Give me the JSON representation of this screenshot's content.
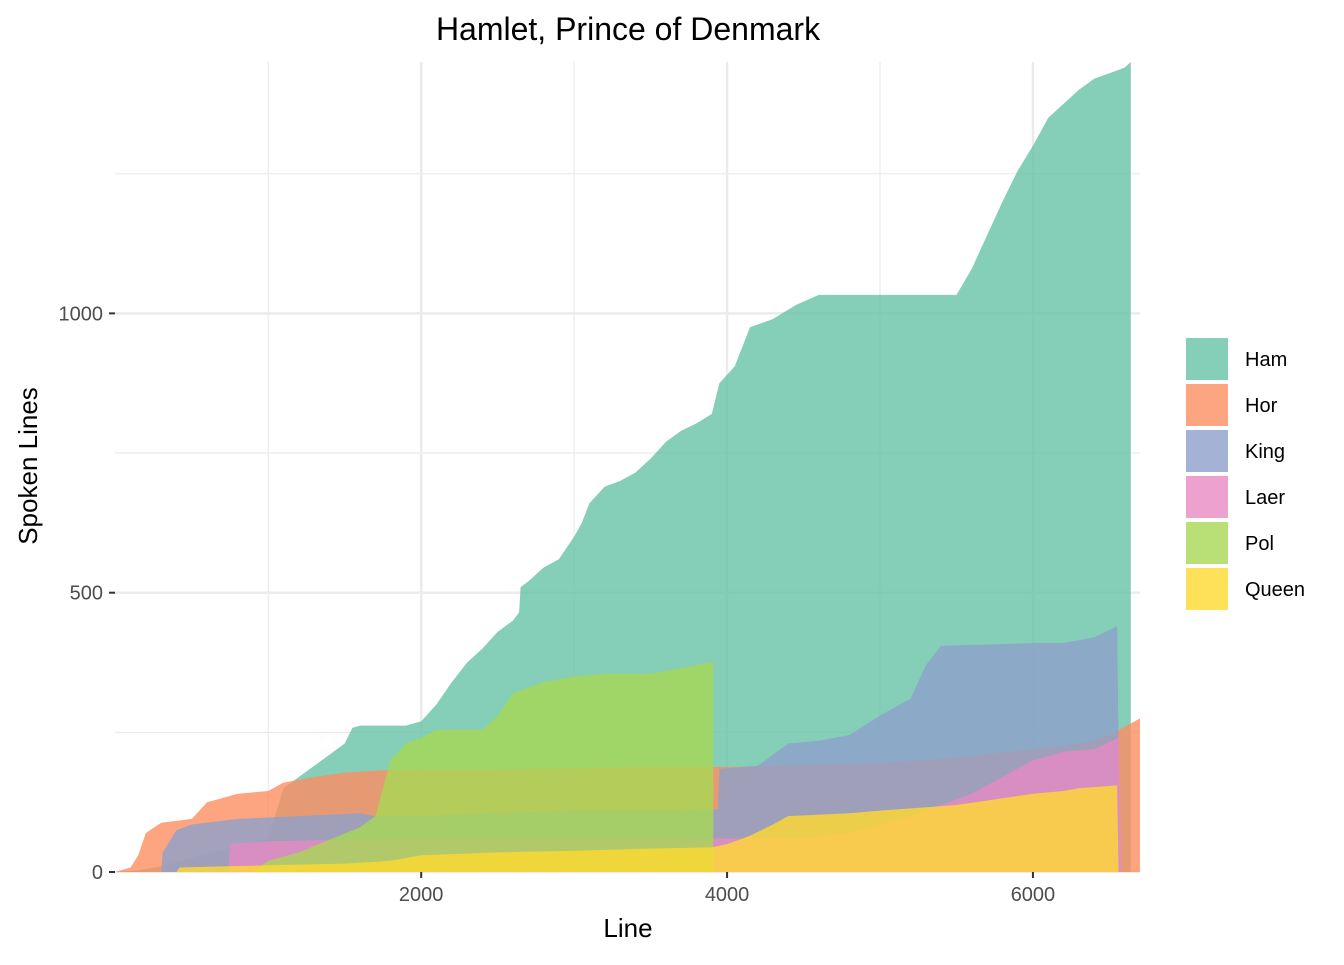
{
  "chart_data": {
    "type": "area",
    "title": "Hamlet, Prince of Denmark",
    "xlabel": "Line",
    "ylabel": "Spoken Lines",
    "xlim": [
      0,
      6700
    ],
    "ylim": [
      0,
      1450
    ],
    "x_ticks": [
      2000,
      4000,
      6000
    ],
    "y_ticks": [
      0,
      500,
      1000
    ],
    "x_tick_labels": [
      "2000",
      "4000",
      "6000"
    ],
    "y_tick_labels": [
      "0",
      "500",
      "1000"
    ],
    "grid": true,
    "legend_position": "right",
    "series": [
      {
        "name": "Ham",
        "color": "#66c2a5",
        "points": [
          [
            0,
            0
          ],
          [
            150,
            3
          ],
          [
            300,
            10
          ],
          [
            500,
            25
          ],
          [
            700,
            40
          ],
          [
            1000,
            60
          ],
          [
            1100,
            150
          ],
          [
            1200,
            170
          ],
          [
            1300,
            190
          ],
          [
            1400,
            210
          ],
          [
            1500,
            230
          ],
          [
            1550,
            258
          ],
          [
            1600,
            262
          ],
          [
            1900,
            262
          ],
          [
            2000,
            270
          ],
          [
            2100,
            300
          ],
          [
            2200,
            340
          ],
          [
            2300,
            375
          ],
          [
            2400,
            400
          ],
          [
            2500,
            430
          ],
          [
            2600,
            450
          ],
          [
            2640,
            465
          ],
          [
            2650,
            510
          ],
          [
            2700,
            520
          ],
          [
            2800,
            545
          ],
          [
            2900,
            560
          ],
          [
            3000,
            600
          ],
          [
            3050,
            625
          ],
          [
            3100,
            660
          ],
          [
            3200,
            690
          ],
          [
            3300,
            700
          ],
          [
            3400,
            715
          ],
          [
            3500,
            740
          ],
          [
            3600,
            770
          ],
          [
            3700,
            790
          ],
          [
            3800,
            803
          ],
          [
            3900,
            820
          ],
          [
            3950,
            875
          ],
          [
            4050,
            905
          ],
          [
            4150,
            975
          ],
          [
            4300,
            990
          ],
          [
            4450,
            1015
          ],
          [
            4600,
            1033
          ],
          [
            5000,
            1033
          ],
          [
            5500,
            1033
          ],
          [
            5600,
            1080
          ],
          [
            5700,
            1140
          ],
          [
            5800,
            1200
          ],
          [
            5900,
            1255
          ],
          [
            6000,
            1300
          ],
          [
            6100,
            1350
          ],
          [
            6300,
            1400
          ],
          [
            6400,
            1420
          ],
          [
            6500,
            1430
          ],
          [
            6600,
            1440
          ],
          [
            6640,
            1450
          ],
          [
            6640,
            0
          ]
        ]
      },
      {
        "name": "Hor",
        "color": "#fc8d62",
        "points": [
          [
            0,
            0
          ],
          [
            100,
            8
          ],
          [
            150,
            30
          ],
          [
            200,
            70
          ],
          [
            300,
            88
          ],
          [
            500,
            95
          ],
          [
            600,
            125
          ],
          [
            800,
            140
          ],
          [
            1000,
            145
          ],
          [
            1100,
            160
          ],
          [
            1300,
            170
          ],
          [
            1500,
            178
          ],
          [
            1800,
            183
          ],
          [
            2500,
            183
          ],
          [
            3000,
            186
          ],
          [
            3500,
            188
          ],
          [
            4000,
            188
          ],
          [
            4300,
            190
          ],
          [
            4500,
            192
          ],
          [
            5000,
            195
          ],
          [
            5500,
            205
          ],
          [
            6000,
            220
          ],
          [
            6300,
            230
          ],
          [
            6500,
            245
          ],
          [
            6600,
            260
          ],
          [
            6700,
            275
          ],
          [
            6700,
            0
          ]
        ]
      },
      {
        "name": "King",
        "color": "#8da0cb",
        "points": [
          [
            300,
            0
          ],
          [
            310,
            35
          ],
          [
            400,
            75
          ],
          [
            500,
            85
          ],
          [
            800,
            95
          ],
          [
            1200,
            100
          ],
          [
            1600,
            105
          ],
          [
            1700,
            100
          ],
          [
            2000,
            100
          ],
          [
            3000,
            110
          ],
          [
            3940,
            112
          ],
          [
            3950,
            185
          ],
          [
            4200,
            190
          ],
          [
            4400,
            230
          ],
          [
            4600,
            235
          ],
          [
            4800,
            245
          ],
          [
            5000,
            280
          ],
          [
            5200,
            310
          ],
          [
            5300,
            370
          ],
          [
            5400,
            405
          ],
          [
            5700,
            407
          ],
          [
            6000,
            410
          ],
          [
            6200,
            410
          ],
          [
            6400,
            420
          ],
          [
            6550,
            440
          ],
          [
            6570,
            0
          ]
        ]
      },
      {
        "name": "Laer",
        "color": "#e78ac3",
        "points": [
          [
            740,
            0
          ],
          [
            750,
            50
          ],
          [
            1000,
            55
          ],
          [
            1500,
            58
          ],
          [
            2000,
            60
          ],
          [
            3000,
            60
          ],
          [
            4000,
            60
          ],
          [
            4500,
            60
          ],
          [
            4800,
            70
          ],
          [
            5000,
            85
          ],
          [
            5200,
            100
          ],
          [
            5400,
            120
          ],
          [
            5600,
            140
          ],
          [
            5800,
            170
          ],
          [
            6000,
            200
          ],
          [
            6200,
            215
          ],
          [
            6400,
            220
          ],
          [
            6560,
            240
          ],
          [
            6580,
            0
          ]
        ]
      },
      {
        "name": "Pol",
        "color": "#a6d854",
        "points": [
          [
            900,
            0
          ],
          [
            950,
            10
          ],
          [
            1000,
            20
          ],
          [
            1200,
            35
          ],
          [
            1600,
            80
          ],
          [
            1700,
            100
          ],
          [
            1750,
            150
          ],
          [
            1800,
            200
          ],
          [
            1900,
            230
          ],
          [
            2000,
            240
          ],
          [
            2100,
            255
          ],
          [
            2400,
            255
          ],
          [
            2500,
            280
          ],
          [
            2600,
            320
          ],
          [
            2800,
            340
          ],
          [
            3000,
            350
          ],
          [
            3200,
            355
          ],
          [
            3500,
            355
          ],
          [
            3700,
            365
          ],
          [
            3880,
            375
          ],
          [
            3910,
            375
          ],
          [
            3910,
            0
          ]
        ]
      },
      {
        "name": "Queen",
        "color": "#ffd92f",
        "points": [
          [
            400,
            0
          ],
          [
            420,
            8
          ],
          [
            700,
            10
          ],
          [
            1000,
            12
          ],
          [
            1500,
            15
          ],
          [
            1800,
            20
          ],
          [
            2000,
            30
          ],
          [
            2500,
            35
          ],
          [
            3000,
            38
          ],
          [
            3500,
            42
          ],
          [
            3900,
            44
          ],
          [
            4000,
            50
          ],
          [
            4150,
            65
          ],
          [
            4300,
            85
          ],
          [
            4400,
            100
          ],
          [
            4800,
            105
          ],
          [
            5000,
            110
          ],
          [
            5500,
            120
          ],
          [
            6000,
            140
          ],
          [
            6200,
            145
          ],
          [
            6300,
            150
          ],
          [
            6550,
            155
          ],
          [
            6560,
            0
          ]
        ]
      }
    ]
  }
}
